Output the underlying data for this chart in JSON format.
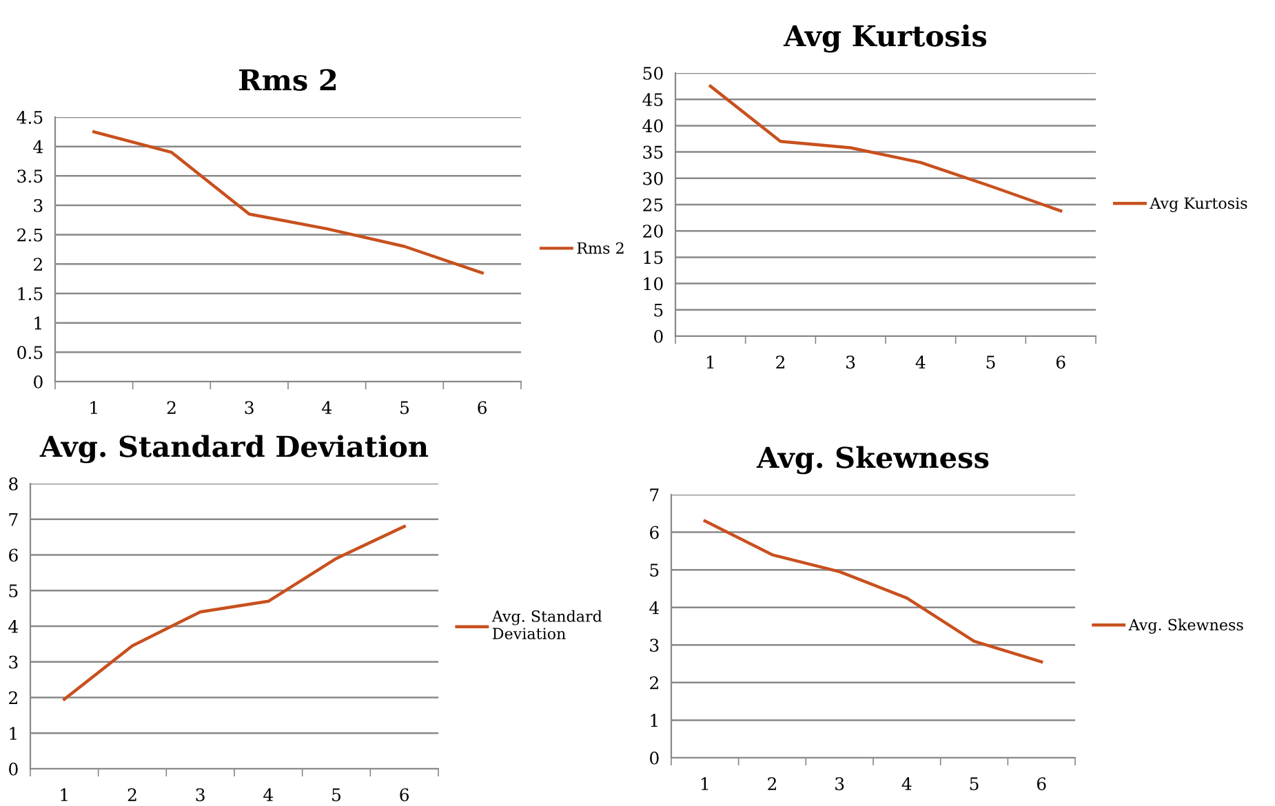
{
  "chart_data": [
    {
      "type": "line",
      "title": "Rms 2",
      "categories": [
        "1",
        "2",
        "3",
        "4",
        "5",
        "6"
      ],
      "series": [
        {
          "name": "Rms 2",
          "color": "#c8501e",
          "values": [
            4.25,
            3.9,
            2.85,
            2.6,
            2.3,
            1.85
          ]
        }
      ],
      "ylim": [
        0,
        4.5
      ],
      "yticks": [
        0,
        0.5,
        1,
        1.5,
        2,
        2.5,
        3,
        3.5,
        4,
        4.5
      ],
      "grid": "y",
      "legend": "right",
      "marker": "none"
    },
    {
      "type": "line",
      "title": "Avg Kurtosis",
      "categories": [
        "1",
        "2",
        "3",
        "4",
        "5",
        "6"
      ],
      "series": [
        {
          "name": "Avg Kurtosis",
          "color": "#c8501e",
          "values": [
            47.5,
            37,
            35.8,
            33,
            28.5,
            23.8
          ]
        }
      ],
      "ylim": [
        0,
        50
      ],
      "yticks": [
        0,
        5,
        10,
        15,
        20,
        25,
        30,
        35,
        40,
        45,
        50
      ],
      "grid": "y",
      "legend": "right",
      "marker": "none"
    },
    {
      "type": "line",
      "title": "Avg. Standard Deviation",
      "categories": [
        "1",
        "2",
        "3",
        "4",
        "5",
        "6"
      ],
      "series": [
        {
          "name": "Avg. Standard Deviation",
          "color": "#c8501e",
          "values": [
            1.95,
            3.45,
            4.4,
            4.7,
            5.9,
            6.8
          ]
        }
      ],
      "ylim": [
        0,
        8
      ],
      "yticks": [
        0,
        1,
        2,
        3,
        4,
        5,
        6,
        7,
        8
      ],
      "grid": "y",
      "legend": "right",
      "marker": "none"
    },
    {
      "type": "line",
      "title": "Avg. Skewness",
      "categories": [
        "1",
        "2",
        "3",
        "4",
        "5",
        "6"
      ],
      "series": [
        {
          "name": "Avg. Skewness",
          "color": "#c8501e",
          "values": [
            6.3,
            5.4,
            4.95,
            4.25,
            3.1,
            2.55
          ]
        }
      ],
      "ylim": [
        0,
        7
      ],
      "yticks": [
        0,
        1,
        2,
        3,
        4,
        5,
        6,
        7
      ],
      "grid": "y",
      "legend": "right",
      "marker": "none"
    }
  ]
}
